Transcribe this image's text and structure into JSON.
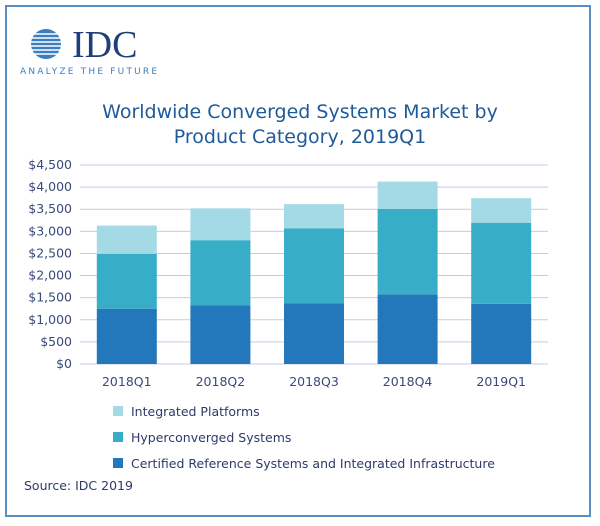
{
  "logo": {
    "text": "IDC",
    "tagline": "ANALYZE THE FUTURE"
  },
  "chart_data": {
    "type": "bar",
    "stacked": true,
    "title": [
      "Worldwide Converged Systems Market by",
      "Product Category, 2019Q1"
    ],
    "categories": [
      "2018Q1",
      "2018Q2",
      "2018Q3",
      "2018Q4",
      "2019Q1"
    ],
    "yticks": [
      "$0",
      "$500",
      "$1,000",
      "$1,500",
      "$2,000",
      "$2,500",
      "$3,000",
      "$3,500",
      "$4,000",
      "$4,500"
    ],
    "ylim": [
      0,
      4500
    ],
    "grid": true,
    "legend_placement": "bottom",
    "series": [
      {
        "name": "Certified Reference Systems and Integrated Infrastructure",
        "color": "#2377bb",
        "values": [
          1250,
          1330,
          1375,
          1575,
          1360
        ]
      },
      {
        "name": "Hyperconverged Systems",
        "color": "#37adc8",
        "values": [
          1240,
          1470,
          1695,
          1930,
          1835
        ]
      },
      {
        "name": "Integrated Platforms",
        "color": "#a3dae5",
        "values": [
          640,
          720,
          545,
          620,
          555
        ]
      }
    ],
    "source": "Source: IDC 2019"
  }
}
